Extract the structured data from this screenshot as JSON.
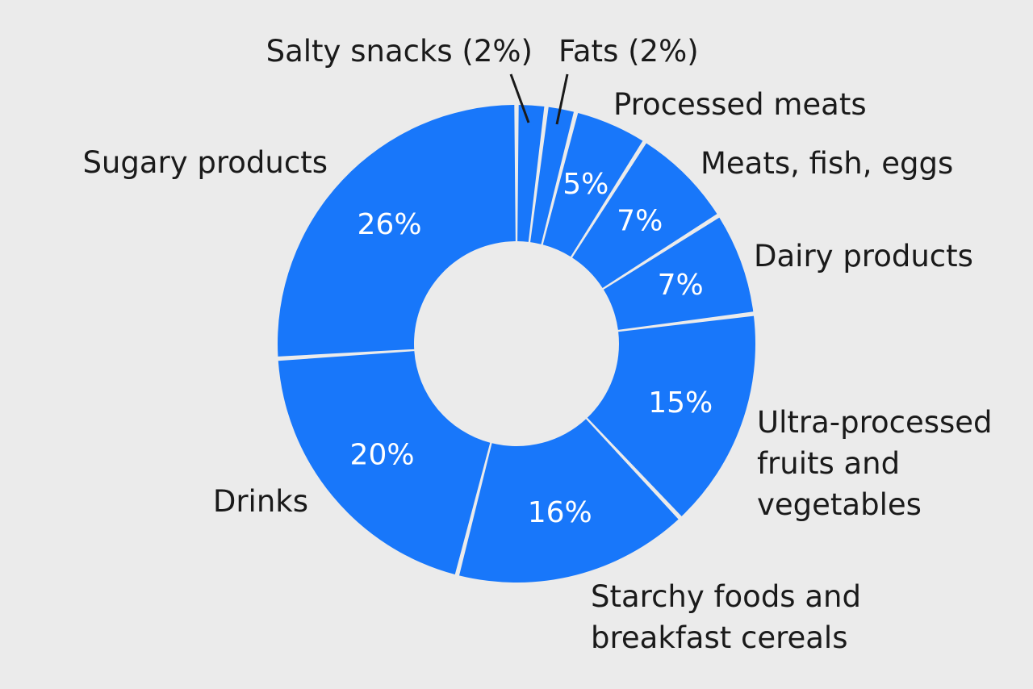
{
  "chart_data": {
    "type": "pie",
    "variant": "donut",
    "start": "12 o'clock",
    "direction": "clockwise",
    "color": "#1877fa",
    "separator_color": "#ebebeb",
    "background": "#ebebeb",
    "categories": [
      "Salty snacks",
      "Fats",
      "Processed meats",
      "Meats, fish, eggs",
      "Dairy products",
      "Ultra-processed fruits and vegetables",
      "Starchy foods and breakfast cereals",
      "Drinks",
      "Sugary products"
    ],
    "values": [
      2,
      2,
      5,
      7,
      7,
      15,
      16,
      20,
      26
    ],
    "slices": [
      {
        "label_lines": [
          "Salty snacks (2%)"
        ],
        "value": 2,
        "value_text": ""
      },
      {
        "label_lines": [
          "Fats (2%)"
        ],
        "value": 2,
        "value_text": ""
      },
      {
        "label_lines": [
          "Processed meats"
        ],
        "value": 5,
        "value_text": "5%"
      },
      {
        "label_lines": [
          "Meats, fish, eggs"
        ],
        "value": 7,
        "value_text": "7%"
      },
      {
        "label_lines": [
          "Dairy products"
        ],
        "value": 7,
        "value_text": "7%"
      },
      {
        "label_lines": [
          "Ultra-processed",
          "fruits and",
          "vegetables"
        ],
        "value": 15,
        "value_text": "15%"
      },
      {
        "label_lines": [
          "Starchy foods and",
          "breakfast cereals"
        ],
        "value": 16,
        "value_text": "16%"
      },
      {
        "label_lines": [
          "Drinks"
        ],
        "value": 20,
        "value_text": "20%"
      },
      {
        "label_lines": [
          "Sugary products"
        ],
        "value": 26,
        "value_text": "26%"
      }
    ],
    "title": "",
    "legend": "none"
  }
}
